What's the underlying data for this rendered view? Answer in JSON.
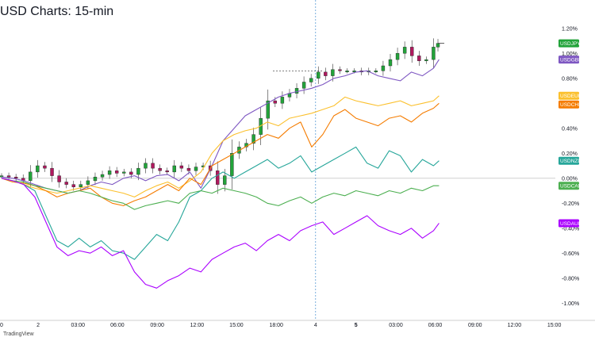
{
  "page": {
    "title": "USD Charts: 15-min",
    "brand": "TradingView"
  },
  "chart_data": {
    "type": "line",
    "title": "USD Charts: 15-min",
    "x_tick_labels": [
      "0",
      "2",
      "03:00",
      "06:00",
      "09:00",
      "12:00",
      "15:00",
      "18:00",
      "4",
      "5",
      "03:00",
      "06:00",
      "09:00",
      "12:00",
      "15:00"
    ],
    "x_tick_bold": [
      false,
      false,
      false,
      false,
      false,
      false,
      false,
      false,
      false,
      true,
      false,
      false,
      false,
      false,
      false
    ],
    "y_tick_labels": [
      "1.20%",
      "1.00%",
      "0.80%",
      "0.60%",
      "0.40%",
      "0.20%",
      "0.00%",
      "-0.20%",
      "-0.40%",
      "-0.60%",
      "-0.80%",
      "-1.00%"
    ],
    "y_tick_values": [
      1.2,
      1.0,
      0.8,
      0.6,
      0.4,
      0.2,
      0.0,
      -0.2,
      -0.4,
      -0.6,
      -0.8,
      -1.0
    ],
    "ylim": [
      -1.1,
      1.3
    ],
    "x_range": [
      0,
      100
    ],
    "x_tick_positions": [
      0,
      6.6,
      13.8,
      20.9,
      28.1,
      35.3,
      42.4,
      49.6,
      56.7,
      64.0,
      71.2,
      78.3,
      85.5,
      92.6,
      99.8
    ],
    "grid": false,
    "series": [
      {
        "name": "USDJPY",
        "color": "#22a33a",
        "style": "candles",
        "x": [
          0,
          1.3,
          2.6,
          3.9,
          5.2,
          6.5,
          7.8,
          9.1,
          10.4,
          11.7,
          13,
          14.3,
          15.6,
          16.9,
          18.2,
          19.5,
          20.8,
          22.1,
          23.4,
          24.7,
          26,
          27.3,
          28.6,
          29.9,
          31.2,
          32.5,
          33.8,
          35.1,
          36.4,
          37.7,
          39,
          40.3,
          41.6,
          42.9,
          44.2,
          45.5,
          46.8,
          48.1,
          49.4,
          50.7,
          52,
          53.3,
          54.6,
          55.9,
          57.2,
          58.5,
          59.8,
          61.1,
          62.4,
          63.7,
          65,
          66.3,
          67.6,
          68.9,
          70.2,
          71.5,
          72.8,
          74.1,
          75.4,
          76.7,
          78,
          78.8
        ],
        "values": [
          0.02,
          0.01,
          0.0,
          -0.02,
          0.05,
          0.1,
          0.08,
          0.02,
          -0.03,
          -0.05,
          -0.07,
          -0.05,
          -0.02,
          0.01,
          0.03,
          0.06,
          0.04,
          0.05,
          0.03,
          0.08,
          0.12,
          0.08,
          0.06,
          0.05,
          0.1,
          0.08,
          0.06,
          0.09,
          0.1,
          0.06,
          -0.05,
          0.02,
          0.2,
          0.25,
          0.28,
          0.35,
          0.48,
          0.62,
          0.6,
          0.65,
          0.68,
          0.72,
          0.77,
          0.8,
          0.85,
          0.82,
          0.87,
          0.86,
          0.86,
          0.86,
          0.85,
          0.86,
          0.86,
          0.9,
          0.95,
          1.0,
          1.05,
          0.98,
          0.94,
          0.95,
          1.05,
          1.08
        ]
      },
      {
        "name": "USDGBP",
        "color": "#7e57c2",
        "style": "line",
        "x": [
          0,
          2,
          4,
          6,
          8,
          10,
          12,
          14,
          16,
          18,
          20,
          22,
          24,
          26,
          28,
          30,
          32,
          34,
          36,
          38,
          40,
          42,
          44,
          46,
          48,
          50,
          52,
          54,
          56,
          58,
          60,
          62,
          64,
          66,
          68,
          70,
          72,
          74,
          76,
          78,
          79
        ],
        "values": [
          0.01,
          0.0,
          -0.02,
          -0.05,
          -0.08,
          -0.1,
          -0.12,
          -0.1,
          -0.06,
          -0.03,
          -0.05,
          0.0,
          0.02,
          -0.02,
          0.02,
          0.03,
          -0.02,
          0.05,
          -0.08,
          0.1,
          0.3,
          0.4,
          0.5,
          0.55,
          0.6,
          0.65,
          0.68,
          0.7,
          0.72,
          0.75,
          0.8,
          0.82,
          0.85,
          0.86,
          0.82,
          0.8,
          0.78,
          0.85,
          0.82,
          0.88,
          0.95
        ]
      },
      {
        "name": "USDEUR",
        "color": "#fbc02d",
        "style": "line",
        "x": [
          0,
          2,
          4,
          6,
          8,
          10,
          12,
          14,
          16,
          18,
          20,
          22,
          24,
          26,
          28,
          30,
          32,
          34,
          36,
          38,
          40,
          42,
          44,
          46,
          48,
          50,
          52,
          54,
          56,
          58,
          60,
          62,
          64,
          66,
          68,
          70,
          72,
          74,
          76,
          78,
          79
        ],
        "values": [
          0.0,
          -0.02,
          -0.05,
          -0.08,
          -0.1,
          -0.12,
          -0.1,
          -0.08,
          -0.06,
          -0.08,
          -0.1,
          -0.12,
          -0.15,
          -0.1,
          -0.06,
          -0.03,
          -0.08,
          -0.02,
          0.05,
          0.2,
          0.3,
          0.35,
          0.38,
          0.4,
          0.45,
          0.42,
          0.48,
          0.5,
          0.52,
          0.55,
          0.58,
          0.65,
          0.62,
          0.6,
          0.58,
          0.6,
          0.62,
          0.58,
          0.6,
          0.62,
          0.66
        ]
      },
      {
        "name": "USDCHF",
        "color": "#f57c00",
        "style": "line",
        "x": [
          0,
          2,
          4,
          6,
          8,
          10,
          12,
          14,
          16,
          18,
          20,
          22,
          24,
          26,
          28,
          30,
          32,
          34,
          36,
          38,
          40,
          42,
          44,
          46,
          48,
          50,
          52,
          54,
          56,
          58,
          60,
          62,
          64,
          66,
          68,
          70,
          72,
          74,
          76,
          78,
          79
        ],
        "values": [
          0.0,
          -0.03,
          -0.04,
          -0.06,
          -0.1,
          -0.15,
          -0.12,
          -0.1,
          -0.08,
          -0.15,
          -0.2,
          -0.22,
          -0.18,
          -0.15,
          -0.1,
          -0.05,
          -0.1,
          0.0,
          -0.05,
          0.1,
          0.15,
          0.2,
          0.25,
          0.3,
          0.35,
          0.32,
          0.4,
          0.45,
          0.25,
          0.35,
          0.5,
          0.55,
          0.48,
          0.45,
          0.42,
          0.48,
          0.5,
          0.45,
          0.52,
          0.56,
          0.6
        ]
      },
      {
        "name": "USDNZD",
        "color": "#26a69a",
        "style": "line",
        "x": [
          0,
          2,
          4,
          6,
          8,
          10,
          12,
          14,
          16,
          18,
          20,
          22,
          24,
          26,
          28,
          30,
          32,
          34,
          36,
          38,
          40,
          42,
          44,
          46,
          48,
          50,
          52,
          54,
          56,
          58,
          60,
          62,
          64,
          66,
          68,
          70,
          72,
          74,
          76,
          78,
          79
        ],
        "values": [
          0.0,
          -0.02,
          -0.05,
          -0.1,
          -0.3,
          -0.5,
          -0.55,
          -0.48,
          -0.55,
          -0.5,
          -0.58,
          -0.6,
          -0.65,
          -0.55,
          -0.45,
          -0.5,
          -0.35,
          -0.15,
          -0.1,
          0.0,
          0.05,
          0.0,
          0.05,
          0.1,
          0.15,
          0.08,
          0.12,
          0.18,
          0.05,
          0.1,
          0.15,
          0.2,
          0.25,
          0.12,
          0.08,
          0.22,
          0.18,
          0.05,
          0.15,
          0.1,
          0.14
        ]
      },
      {
        "name": "USDCAD",
        "color": "#4caf50",
        "style": "line",
        "x": [
          0,
          2,
          4,
          6,
          8,
          10,
          12,
          14,
          16,
          18,
          20,
          22,
          24,
          26,
          28,
          30,
          32,
          34,
          36,
          38,
          40,
          42,
          44,
          46,
          48,
          50,
          52,
          54,
          56,
          58,
          60,
          62,
          64,
          66,
          68,
          70,
          72,
          74,
          76,
          78,
          79
        ],
        "values": [
          0.0,
          -0.02,
          -0.03,
          -0.06,
          -0.08,
          -0.1,
          -0.12,
          -0.1,
          -0.12,
          -0.15,
          -0.18,
          -0.2,
          -0.25,
          -0.22,
          -0.2,
          -0.18,
          -0.2,
          -0.12,
          -0.1,
          -0.12,
          -0.08,
          -0.1,
          -0.12,
          -0.15,
          -0.2,
          -0.22,
          -0.18,
          -0.15,
          -0.2,
          -0.15,
          -0.12,
          -0.14,
          -0.1,
          -0.12,
          -0.14,
          -0.1,
          -0.12,
          -0.08,
          -0.1,
          -0.06,
          -0.06
        ]
      },
      {
        "name": "USDAUD",
        "color": "#aa00ff",
        "style": "line",
        "x": [
          0,
          2,
          4,
          6,
          8,
          10,
          12,
          14,
          16,
          18,
          20,
          22,
          24,
          26,
          28,
          30,
          32,
          34,
          36,
          38,
          40,
          42,
          44,
          46,
          48,
          50,
          52,
          54,
          56,
          58,
          60,
          62,
          64,
          66,
          68,
          70,
          72,
          74,
          76,
          78,
          79
        ],
        "values": [
          0.0,
          -0.02,
          -0.05,
          -0.15,
          -0.35,
          -0.55,
          -0.62,
          -0.58,
          -0.6,
          -0.55,
          -0.62,
          -0.58,
          -0.75,
          -0.85,
          -0.88,
          -0.82,
          -0.78,
          -0.72,
          -0.75,
          -0.65,
          -0.6,
          -0.55,
          -0.52,
          -0.58,
          -0.5,
          -0.45,
          -0.5,
          -0.42,
          -0.38,
          -0.35,
          -0.45,
          -0.4,
          -0.35,
          -0.3,
          -0.38,
          -0.42,
          -0.45,
          -0.4,
          -0.48,
          -0.42,
          -0.36
        ]
      }
    ],
    "current_marker_x": 56.7,
    "dashed_level": 0.86
  }
}
